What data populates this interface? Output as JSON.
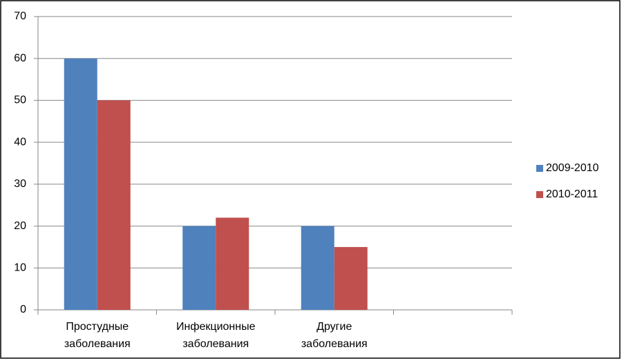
{
  "chart_data": {
    "type": "bar",
    "categories": [
      "Простудные заболевания",
      "Инфекционные заболевания",
      "Другие заболевания",
      null
    ],
    "series": [
      {
        "name": "2009-2010",
        "color": "#4f81bd",
        "values": [
          60,
          20,
          20,
          null
        ]
      },
      {
        "name": "2010-2011",
        "color": "#c0504d",
        "values": [
          50,
          22,
          15,
          null
        ]
      }
    ],
    "ylim": [
      0,
      70
    ],
    "yticks": [
      0,
      10,
      20,
      30,
      40,
      50,
      60,
      70
    ],
    "grid": true,
    "legend": "right"
  }
}
